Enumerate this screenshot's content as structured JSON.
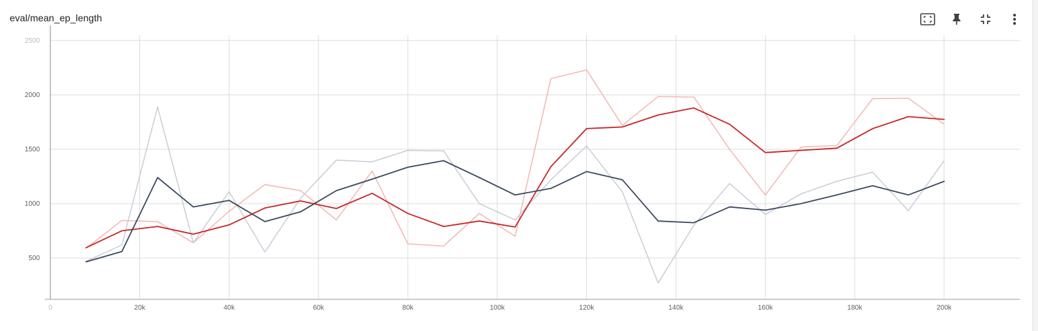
{
  "card": {
    "title": "eval/mean_ep_length",
    "toolbar": {
      "fit_icon": "fit-to-domain-icon",
      "pin_icon": "pin-icon",
      "collapse_icon": "collapse-icon",
      "more_icon": "more-vert-icon"
    }
  },
  "colors": {
    "red_smoothed": "#c62828",
    "red_raw": "#f4b6b3",
    "navy_smoothed": "#3d4a5e",
    "navy_raw": "#c9cdd8",
    "grid": "#dcdcdc",
    "axis": "#9e9e9e"
  },
  "chart_data": {
    "type": "line",
    "title": "eval/mean_ep_length",
    "xlabel": "",
    "ylabel": "",
    "xlim": [
      0,
      217000
    ],
    "ylim": [
      120,
      2550
    ],
    "x_ticks": [
      0,
      20000,
      40000,
      60000,
      80000,
      100000,
      120000,
      140000,
      160000,
      180000,
      200000
    ],
    "x_tick_labels": [
      "0",
      "20k",
      "40k",
      "60k",
      "80k",
      "100k",
      "120k",
      "140k",
      "160k",
      "180k",
      "200k"
    ],
    "y_ticks": [
      500,
      1000,
      1500,
      2000,
      2500
    ],
    "y_tick_labels": [
      "500",
      "1000",
      "1500",
      "2000",
      "2500"
    ],
    "grid": true,
    "legend": "none",
    "series": [
      {
        "color": "#f4b6b3",
        "role": "raw",
        "width": 1.5,
        "x": [
          8000,
          16000,
          24000,
          32000,
          40000,
          48000,
          56000,
          64000,
          72000,
          80000,
          88000,
          96000,
          104000,
          112000,
          120000,
          128000,
          136000,
          144000,
          152000,
          160000,
          168000,
          176000,
          184000,
          192000,
          200000
        ],
        "values": [
          590,
          845,
          835,
          640,
          930,
          1175,
          1120,
          850,
          1300,
          630,
          610,
          910,
          700,
          2150,
          2230,
          1720,
          1985,
          1980,
          1500,
          1080,
          1520,
          1535,
          1965,
          1970,
          1730
        ]
      },
      {
        "color": "#c9cdd8",
        "role": "raw",
        "width": 1.5,
        "x": [
          8000,
          16000,
          24000,
          32000,
          40000,
          48000,
          56000,
          64000,
          72000,
          80000,
          88000,
          96000,
          104000,
          112000,
          120000,
          128000,
          136000,
          144000,
          152000,
          160000,
          168000,
          176000,
          184000,
          192000,
          200000
        ],
        "values": [
          470,
          620,
          1890,
          640,
          1110,
          555,
          1050,
          1400,
          1385,
          1490,
          1485,
          1000,
          850,
          1220,
          1530,
          1110,
          270,
          800,
          1185,
          900,
          1090,
          1205,
          1290,
          935,
          1395
        ]
      },
      {
        "color": "#c62828",
        "role": "smoothed",
        "width": 1.8,
        "x": [
          8000,
          16000,
          24000,
          32000,
          40000,
          48000,
          56000,
          64000,
          72000,
          80000,
          88000,
          96000,
          104000,
          112000,
          120000,
          128000,
          136000,
          144000,
          152000,
          160000,
          168000,
          176000,
          184000,
          192000,
          200000
        ],
        "values": [
          595,
          750,
          790,
          720,
          805,
          960,
          1025,
          955,
          1095,
          910,
          790,
          840,
          785,
          1340,
          1690,
          1705,
          1815,
          1880,
          1730,
          1470,
          1490,
          1510,
          1690,
          1800,
          1775
        ]
      },
      {
        "color": "#3d4a5e",
        "role": "smoothed",
        "width": 1.8,
        "x": [
          8000,
          16000,
          24000,
          32000,
          40000,
          48000,
          56000,
          64000,
          72000,
          80000,
          88000,
          96000,
          104000,
          112000,
          120000,
          128000,
          136000,
          144000,
          152000,
          160000,
          168000,
          176000,
          184000,
          192000,
          200000
        ],
        "values": [
          465,
          560,
          1240,
          970,
          1030,
          835,
          925,
          1120,
          1225,
          1335,
          1395,
          1240,
          1080,
          1140,
          1295,
          1220,
          840,
          825,
          970,
          940,
          1000,
          1080,
          1165,
          1080,
          1205
        ]
      }
    ]
  }
}
